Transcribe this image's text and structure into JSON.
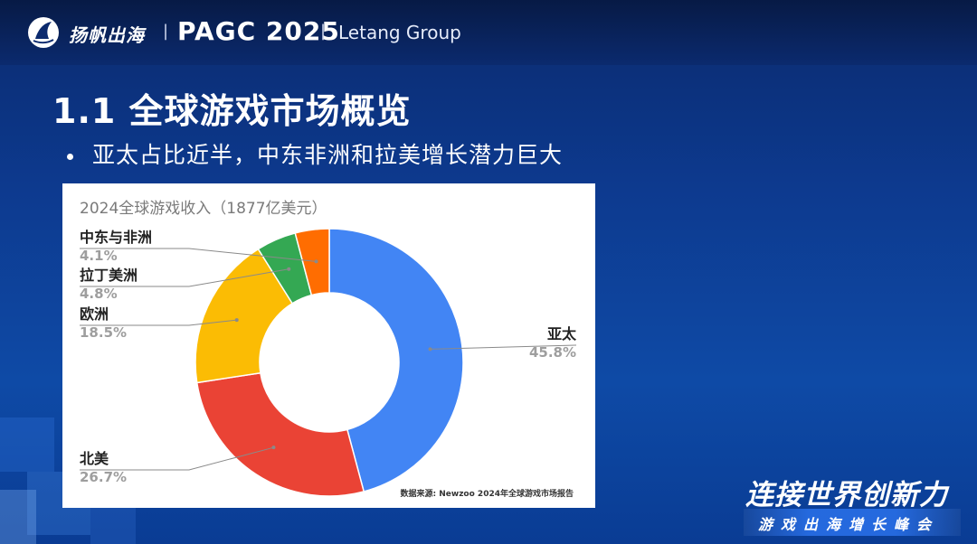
{
  "header": {
    "brand_cn": "扬帆出海",
    "separator": "|",
    "brand_pagc": "PAGC 2025",
    "brand_letang": "Letang Group"
  },
  "page_title": "1.1 全球游戏市场概览",
  "bullet": "亚太占比近半，中东非洲和拉美增长潜力巨大",
  "chart_data": {
    "type": "pie",
    "title": "2024全球游戏收入（1877亿美元）",
    "source_note": "数据来源: Newzoo 2024年全球游戏市场报告",
    "donut": true,
    "slices": [
      {
        "name": "亚太",
        "value_label": "45.8%",
        "value": 45.8,
        "color": "#4285f4",
        "label_side": "right"
      },
      {
        "name": "北美",
        "value_label": "26.7%",
        "value": 26.7,
        "color": "#ea4335",
        "label_side": "left"
      },
      {
        "name": "欧洲",
        "value_label": "18.5%",
        "value": 18.5,
        "color": "#fbbc04",
        "label_side": "left"
      },
      {
        "name": "拉丁美洲",
        "value_label": "4.8%",
        "value": 4.8,
        "color": "#34a853",
        "label_side": "left"
      },
      {
        "name": "中东与非洲",
        "value_label": "4.1%",
        "value": 4.1,
        "color": "#ff6d01",
        "label_side": "left"
      }
    ]
  },
  "footer": {
    "slogan_cn": "连接世界创新力",
    "slogan_sub": "游戏出海增长峰会"
  },
  "colors": {
    "background": "#0d3a8f",
    "panel": "#ffffff",
    "label_name": "#222222",
    "label_value": "#9e9e9e",
    "leader_line": "#8a8a8a"
  }
}
